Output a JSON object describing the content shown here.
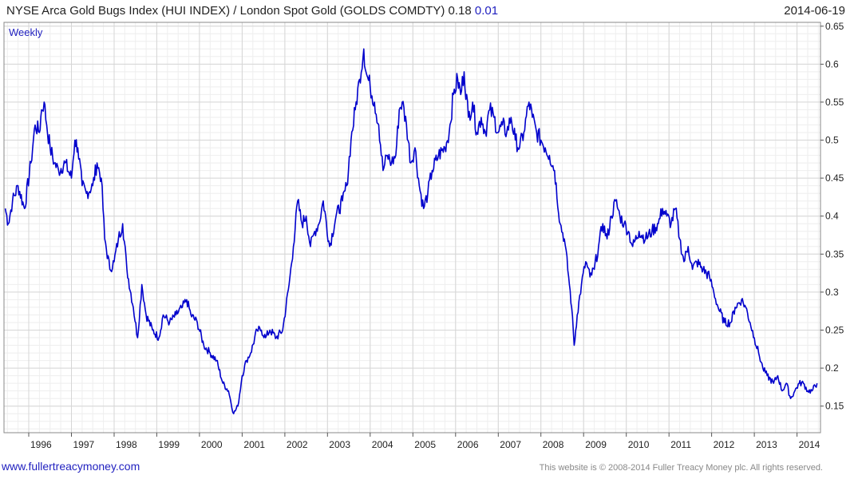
{
  "header": {
    "title": "NYSE Arca Gold Bugs Index (HUI INDEX) / London Spot Gold (GOLDS COMDTY) 0.18",
    "change": "0.01",
    "date": "2014-06-19"
  },
  "footer": {
    "site": "www.fullertreacymoney.com",
    "copyright": "This website is © 2008-2014 Fuller Treacy Money plc. All rights reserved."
  },
  "chart_data": {
    "type": "line",
    "frequency_label": "Weekly",
    "series": [
      {
        "color": "#0000cc",
        "points": [
          [
            1995.45,
            0.41
          ],
          [
            1995.52,
            0.39
          ],
          [
            1995.62,
            0.42
          ],
          [
            1995.75,
            0.44
          ],
          [
            1995.9,
            0.41
          ],
          [
            1996.05,
            0.47
          ],
          [
            1996.15,
            0.52
          ],
          [
            1996.25,
            0.51
          ],
          [
            1996.3,
            0.54
          ],
          [
            1996.36,
            0.55
          ],
          [
            1996.42,
            0.52
          ],
          [
            1996.5,
            0.49
          ],
          [
            1996.6,
            0.47
          ],
          [
            1996.7,
            0.46
          ],
          [
            1996.85,
            0.47
          ],
          [
            1997.0,
            0.45
          ],
          [
            1997.08,
            0.5
          ],
          [
            1997.15,
            0.49
          ],
          [
            1997.25,
            0.44
          ],
          [
            1997.35,
            0.43
          ],
          [
            1997.5,
            0.44
          ],
          [
            1997.6,
            0.47
          ],
          [
            1997.7,
            0.45
          ],
          [
            1997.78,
            0.37
          ],
          [
            1997.9,
            0.33
          ],
          [
            1998.0,
            0.34
          ],
          [
            1998.1,
            0.37
          ],
          [
            1998.2,
            0.39
          ],
          [
            1998.3,
            0.33
          ],
          [
            1998.45,
            0.28
          ],
          [
            1998.55,
            0.24
          ],
          [
            1998.65,
            0.31
          ],
          [
            1998.75,
            0.27
          ],
          [
            1998.9,
            0.25
          ],
          [
            1999.05,
            0.24
          ],
          [
            1999.15,
            0.27
          ],
          [
            1999.3,
            0.26
          ],
          [
            1999.45,
            0.27
          ],
          [
            1999.6,
            0.28
          ],
          [
            1999.7,
            0.29
          ],
          [
            1999.8,
            0.27
          ],
          [
            1999.95,
            0.26
          ],
          [
            2000.1,
            0.23
          ],
          [
            2000.25,
            0.22
          ],
          [
            2000.4,
            0.21
          ],
          [
            2000.55,
            0.18
          ],
          [
            2000.68,
            0.17
          ],
          [
            2000.8,
            0.14
          ],
          [
            2000.9,
            0.15
          ],
          [
            2001.0,
            0.19
          ],
          [
            2001.1,
            0.21
          ],
          [
            2001.2,
            0.22
          ],
          [
            2001.35,
            0.25
          ],
          [
            2001.45,
            0.25
          ],
          [
            2001.55,
            0.24
          ],
          [
            2001.65,
            0.25
          ],
          [
            2001.8,
            0.24
          ],
          [
            2001.95,
            0.25
          ],
          [
            2002.1,
            0.31
          ],
          [
            2002.2,
            0.36
          ],
          [
            2002.3,
            0.42
          ],
          [
            2002.4,
            0.39
          ],
          [
            2002.5,
            0.4
          ],
          [
            2002.6,
            0.36
          ],
          [
            2002.7,
            0.38
          ],
          [
            2002.8,
            0.39
          ],
          [
            2002.9,
            0.42
          ],
          [
            2003.05,
            0.36
          ],
          [
            2003.2,
            0.4
          ],
          [
            2003.35,
            0.42
          ],
          [
            2003.45,
            0.44
          ],
          [
            2003.55,
            0.5
          ],
          [
            2003.65,
            0.54
          ],
          [
            2003.75,
            0.58
          ],
          [
            2003.85,
            0.62
          ],
          [
            2003.9,
            0.59
          ],
          [
            2004.0,
            0.57
          ],
          [
            2004.1,
            0.55
          ],
          [
            2004.2,
            0.52
          ],
          [
            2004.3,
            0.46
          ],
          [
            2004.4,
            0.48
          ],
          [
            2004.5,
            0.47
          ],
          [
            2004.6,
            0.48
          ],
          [
            2004.68,
            0.54
          ],
          [
            2004.75,
            0.55
          ],
          [
            2004.85,
            0.52
          ],
          [
            2004.95,
            0.47
          ],
          [
            2005.05,
            0.49
          ],
          [
            2005.15,
            0.44
          ],
          [
            2005.25,
            0.41
          ],
          [
            2005.35,
            0.43
          ],
          [
            2005.45,
            0.46
          ],
          [
            2005.6,
            0.48
          ],
          [
            2005.75,
            0.49
          ],
          [
            2005.85,
            0.51
          ],
          [
            2005.95,
            0.56
          ],
          [
            2006.05,
            0.58
          ],
          [
            2006.12,
            0.56
          ],
          [
            2006.2,
            0.59
          ],
          [
            2006.3,
            0.53
          ],
          [
            2006.4,
            0.55
          ],
          [
            2006.5,
            0.51
          ],
          [
            2006.6,
            0.53
          ],
          [
            2006.7,
            0.51
          ],
          [
            2006.8,
            0.54
          ],
          [
            2006.9,
            0.53
          ],
          [
            2007.0,
            0.51
          ],
          [
            2007.1,
            0.52
          ],
          [
            2007.2,
            0.51
          ],
          [
            2007.3,
            0.53
          ],
          [
            2007.4,
            0.5
          ],
          [
            2007.5,
            0.49
          ],
          [
            2007.6,
            0.51
          ],
          [
            2007.72,
            0.55
          ],
          [
            2007.8,
            0.53
          ],
          [
            2007.9,
            0.51
          ],
          [
            2008.0,
            0.5
          ],
          [
            2008.1,
            0.49
          ],
          [
            2008.2,
            0.48
          ],
          [
            2008.32,
            0.46
          ],
          [
            2008.45,
            0.39
          ],
          [
            2008.55,
            0.37
          ],
          [
            2008.65,
            0.32
          ],
          [
            2008.72,
            0.28
          ],
          [
            2008.78,
            0.23
          ],
          [
            2008.85,
            0.27
          ],
          [
            2008.95,
            0.31
          ],
          [
            2009.05,
            0.34
          ],
          [
            2009.15,
            0.32
          ],
          [
            2009.25,
            0.33
          ],
          [
            2009.35,
            0.36
          ],
          [
            2009.45,
            0.39
          ],
          [
            2009.55,
            0.37
          ],
          [
            2009.65,
            0.4
          ],
          [
            2009.75,
            0.42
          ],
          [
            2009.85,
            0.4
          ],
          [
            2009.95,
            0.39
          ],
          [
            2010.05,
            0.38
          ],
          [
            2010.15,
            0.36
          ],
          [
            2010.3,
            0.38
          ],
          [
            2010.45,
            0.37
          ],
          [
            2010.6,
            0.38
          ],
          [
            2010.75,
            0.39
          ],
          [
            2010.85,
            0.41
          ],
          [
            2010.95,
            0.4
          ],
          [
            2011.05,
            0.39
          ],
          [
            2011.15,
            0.41
          ],
          [
            2011.25,
            0.37
          ],
          [
            2011.35,
            0.34
          ],
          [
            2011.45,
            0.36
          ],
          [
            2011.55,
            0.33
          ],
          [
            2011.65,
            0.34
          ],
          [
            2011.8,
            0.33
          ],
          [
            2011.95,
            0.32
          ],
          [
            2012.05,
            0.3
          ],
          [
            2012.15,
            0.28
          ],
          [
            2012.3,
            0.26
          ],
          [
            2012.45,
            0.26
          ],
          [
            2012.55,
            0.28
          ],
          [
            2012.7,
            0.29
          ],
          [
            2012.8,
            0.28
          ],
          [
            2012.9,
            0.26
          ],
          [
            2013.0,
            0.24
          ],
          [
            2013.1,
            0.22
          ],
          [
            2013.2,
            0.2
          ],
          [
            2013.3,
            0.19
          ],
          [
            2013.45,
            0.18
          ],
          [
            2013.55,
            0.19
          ],
          [
            2013.65,
            0.17
          ],
          [
            2013.75,
            0.18
          ],
          [
            2013.85,
            0.16
          ],
          [
            2013.95,
            0.17
          ],
          [
            2014.05,
            0.18
          ],
          [
            2014.15,
            0.18
          ],
          [
            2014.25,
            0.17
          ],
          [
            2014.35,
            0.17
          ],
          [
            2014.47,
            0.18
          ]
        ]
      }
    ],
    "x_ticks": [
      "1996",
      "1997",
      "1998",
      "1999",
      "2000",
      "2001",
      "2002",
      "2003",
      "2004",
      "2005",
      "2006",
      "2007",
      "2008",
      "2009",
      "2010",
      "2011",
      "2012",
      "2013",
      "2014"
    ],
    "y_ticks": [
      "0.15",
      "0.2",
      "0.25",
      "0.3",
      "0.35",
      "0.4",
      "0.45",
      "0.5",
      "0.55",
      "0.6",
      "0.65"
    ],
    "xlim": [
      1995.42,
      2014.55
    ],
    "ylim": [
      0.115,
      0.655
    ],
    "grid": true
  }
}
